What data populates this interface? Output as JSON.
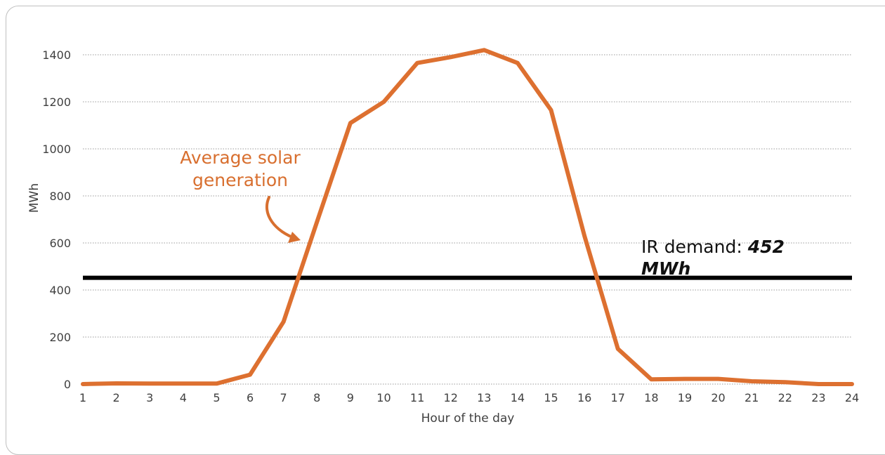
{
  "chart_data": {
    "type": "line",
    "xlabel": "Hour of the day",
    "ylabel": "MWh",
    "ylim": [
      0,
      1400
    ],
    "yticks": [
      0,
      200,
      400,
      600,
      800,
      1000,
      1200,
      1400
    ],
    "x": [
      1,
      2,
      3,
      4,
      5,
      6,
      7,
      8,
      9,
      10,
      11,
      12,
      13,
      14,
      15,
      16,
      17,
      18,
      19,
      20,
      21,
      22,
      23,
      24
    ],
    "grid": "horizontal dotted",
    "series": [
      {
        "color": "#dd7030",
        "values": [
          0,
          3,
          2,
          2,
          2,
          40,
          265,
          690,
          1110,
          1200,
          1365,
          1390,
          1420,
          1365,
          1165,
          630,
          150,
          20,
          22,
          22,
          12,
          8,
          0,
          0
        ]
      }
    ],
    "reference_line": {
      "value": 452,
      "color": "#000000"
    },
    "annotations": {
      "solar_line1": "Average solar",
      "solar_line2": "generation",
      "demand_prefix": "IR demand: ",
      "demand_value": "452",
      "demand_unit": "MWh"
    }
  }
}
